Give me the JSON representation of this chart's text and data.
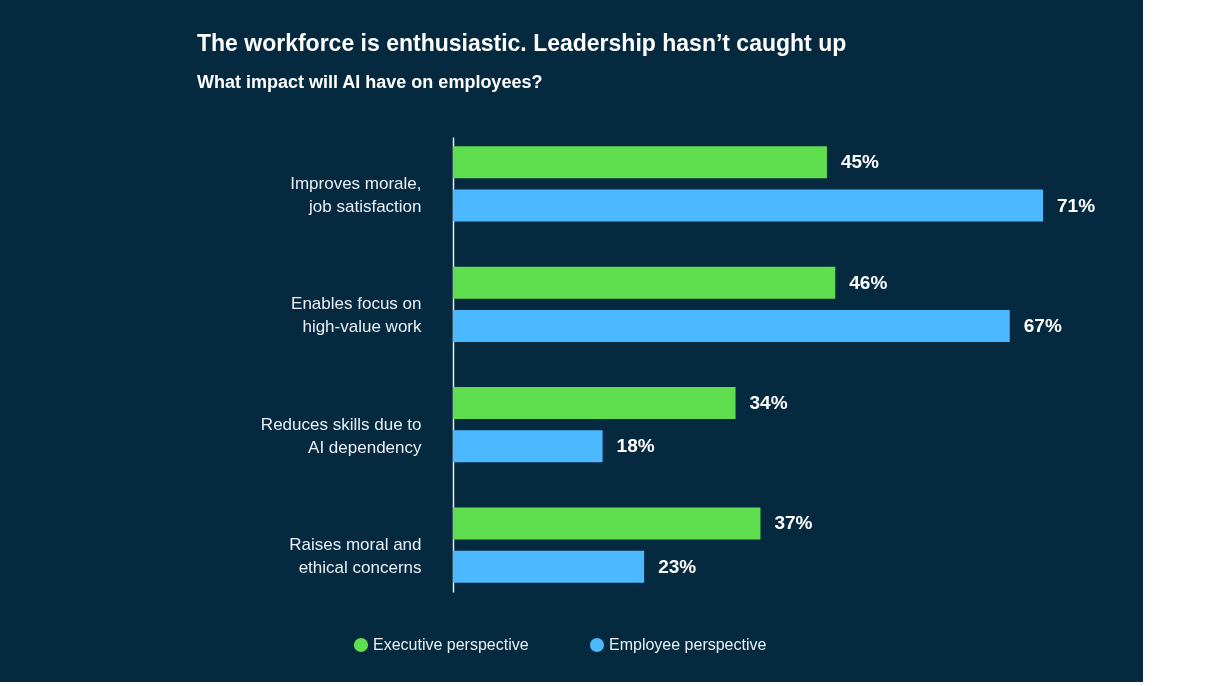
{
  "chart_data": {
    "type": "bar",
    "orientation": "horizontal",
    "title": "The workforce is enthusiastic. Leadership hasn’t caught up",
    "subtitle": "What impact will AI have on employees?",
    "categories": [
      "Improves morale,\njob satisfaction",
      "Enables focus on\nhigh-value work",
      "Reduces skills due to\nAI dependency",
      "Raises moral and\nethical concerns"
    ],
    "series": [
      {
        "name": "Executive perspective",
        "color": "#5fde50",
        "values": [
          45,
          46,
          34,
          37
        ],
        "value_labels": [
          "45%",
          "46%",
          "34%",
          "37%"
        ]
      },
      {
        "name": "Employee perspective",
        "color": "#4cb8ff",
        "values": [
          71,
          67,
          18,
          23
        ],
        "value_labels": [
          "71%",
          "67%",
          "18%",
          "23%"
        ]
      }
    ],
    "tick_labels": "y",
    "grid": false,
    "legend": "bottom"
  }
}
